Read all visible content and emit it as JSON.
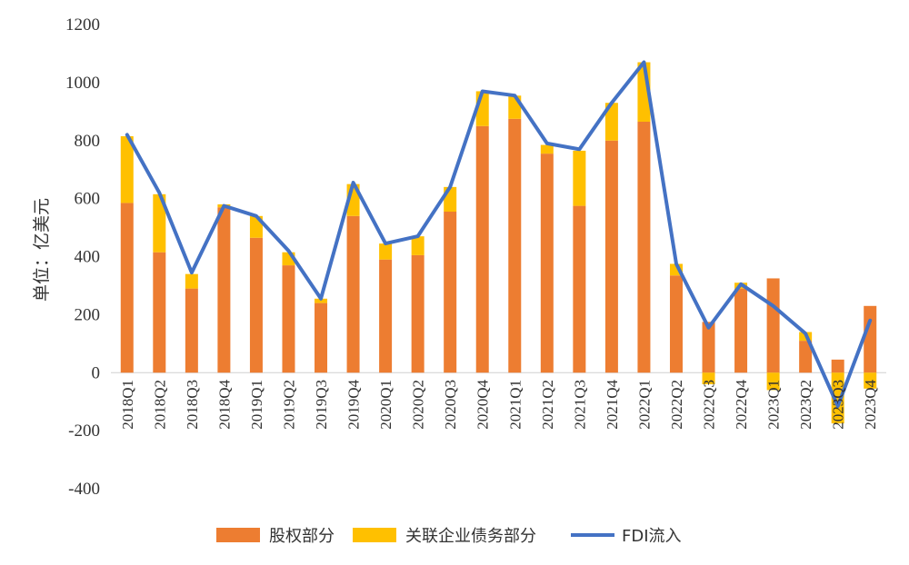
{
  "chart_data": {
    "type": "bar",
    "ylabel": "单位：亿美元",
    "ylim": [
      -400,
      1200
    ],
    "yticks": [
      -400,
      -200,
      0,
      200,
      400,
      600,
      800,
      1000,
      1200
    ],
    "categories": [
      "2018Q1",
      "2018Q2",
      "2018Q3",
      "2018Q4",
      "2019Q1",
      "2019Q2",
      "2019Q3",
      "2019Q4",
      "2020Q1",
      "2020Q2",
      "2020Q3",
      "2020Q4",
      "2021Q1",
      "2021Q2",
      "2021Q3",
      "2021Q4",
      "2022Q1",
      "2022Q2",
      "2022Q3",
      "2022Q4",
      "2023Q1",
      "2023Q2",
      "2023Q3",
      "2023Q4"
    ],
    "series": [
      {
        "name": "股权部分",
        "kind": "bar",
        "color": "#ED7D31",
        "values": [
          585,
          415,
          290,
          570,
          465,
          370,
          240,
          540,
          390,
          405,
          555,
          850,
          875,
          755,
          575,
          800,
          865,
          335,
          175,
          290,
          325,
          110,
          45,
          230
        ]
      },
      {
        "name": "关联企业债务部分",
        "kind": "bar",
        "color": "#FFC000",
        "values": [
          230,
          200,
          50,
          10,
          75,
          45,
          15,
          110,
          55,
          65,
          85,
          120,
          80,
          30,
          190,
          130,
          205,
          40,
          -40,
          20,
          -60,
          30,
          -175,
          -55
        ]
      },
      {
        "name": "FDI流入",
        "kind": "line",
        "color": "#4472C4",
        "values": [
          820,
          620,
          345,
          575,
          540,
          420,
          255,
          655,
          445,
          470,
          640,
          970,
          955,
          790,
          770,
          930,
          1070,
          375,
          155,
          305,
          230,
          135,
          -115,
          180
        ]
      }
    ],
    "legend_position": "bottom",
    "grid": false
  }
}
